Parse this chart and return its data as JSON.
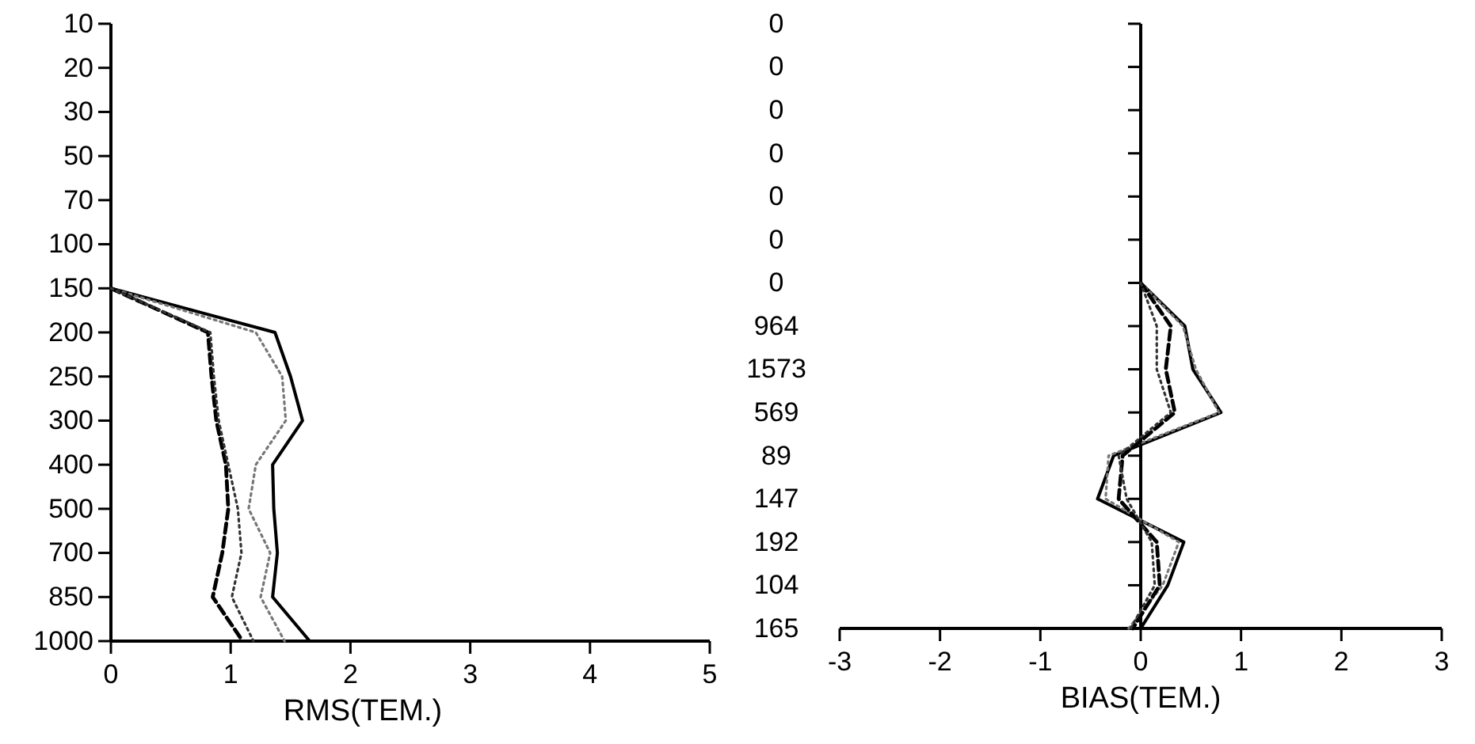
{
  "chart_data": [
    {
      "type": "line",
      "orientation": "horizontal",
      "xlabel": "RMS(TEM.)",
      "categories": [
        "10",
        "20",
        "30",
        "50",
        "70",
        "100",
        "150",
        "200",
        "250",
        "300",
        "400",
        "500",
        "700",
        "850",
        "1000"
      ],
      "series": [
        {
          "color": "#000000",
          "line_style": "solid",
          "values": [
            null,
            null,
            null,
            null,
            null,
            null,
            0,
            1.37,
            1.5,
            1.6,
            1.35,
            1.36,
            1.39,
            1.35,
            1.66
          ]
        },
        {
          "color": "#777777",
          "line_style": "dotted",
          "values": [
            null,
            null,
            null,
            null,
            null,
            null,
            0,
            1.21,
            1.43,
            1.46,
            1.21,
            1.15,
            1.33,
            1.25,
            1.45
          ]
        },
        {
          "color": "#000000",
          "line_style": "dashed",
          "values": [
            null,
            null,
            null,
            null,
            null,
            null,
            0,
            0.81,
            0.84,
            0.88,
            0.96,
            0.98,
            0.93,
            0.85,
            1.1
          ]
        },
        {
          "color": "#333333",
          "line_style": "dotted",
          "values": [
            null,
            null,
            null,
            null,
            null,
            null,
            0,
            0.83,
            0.86,
            0.9,
            0.98,
            1.06,
            1.09,
            1.01,
            1.19
          ]
        }
      ],
      "xlim": [
        0,
        5
      ],
      "xticks": [
        0,
        1,
        2,
        3,
        4,
        5
      ]
    },
    {
      "type": "line",
      "orientation": "horizontal",
      "xlabel": "BIAS(TEM.)",
      "categories": [
        "0",
        "0",
        "0",
        "0",
        "0",
        "0",
        "0",
        "964",
        "1573",
        "569",
        "89",
        "147",
        "192",
        "104",
        "165"
      ],
      "series": [
        {
          "color": "#000000",
          "line_style": "solid",
          "values": [
            null,
            null,
            null,
            null,
            null,
            null,
            0,
            0.44,
            0.52,
            0.8,
            -0.27,
            -0.43,
            0.43,
            0.27,
            0
          ]
        },
        {
          "color": "#777777",
          "line_style": "dotted",
          "values": [
            null,
            null,
            null,
            null,
            null,
            null,
            0,
            0.42,
            0.55,
            0.78,
            -0.32,
            -0.35,
            0.38,
            0.22,
            -0.12
          ]
        },
        {
          "color": "#000000",
          "line_style": "dashed",
          "values": [
            null,
            null,
            null,
            null,
            null,
            null,
            0,
            0.3,
            0.25,
            0.34,
            -0.18,
            -0.22,
            0.16,
            0.19,
            -0.08
          ]
        },
        {
          "color": "#333333",
          "line_style": "dotted",
          "values": [
            null,
            null,
            null,
            null,
            null,
            null,
            0,
            0.16,
            0.16,
            0.3,
            -0.22,
            -0.14,
            0.11,
            0.14,
            -0.1
          ]
        }
      ],
      "xlim": [
        -3,
        3
      ],
      "xticks": [
        -3,
        -2,
        -1,
        0,
        1,
        2,
        3
      ]
    }
  ]
}
